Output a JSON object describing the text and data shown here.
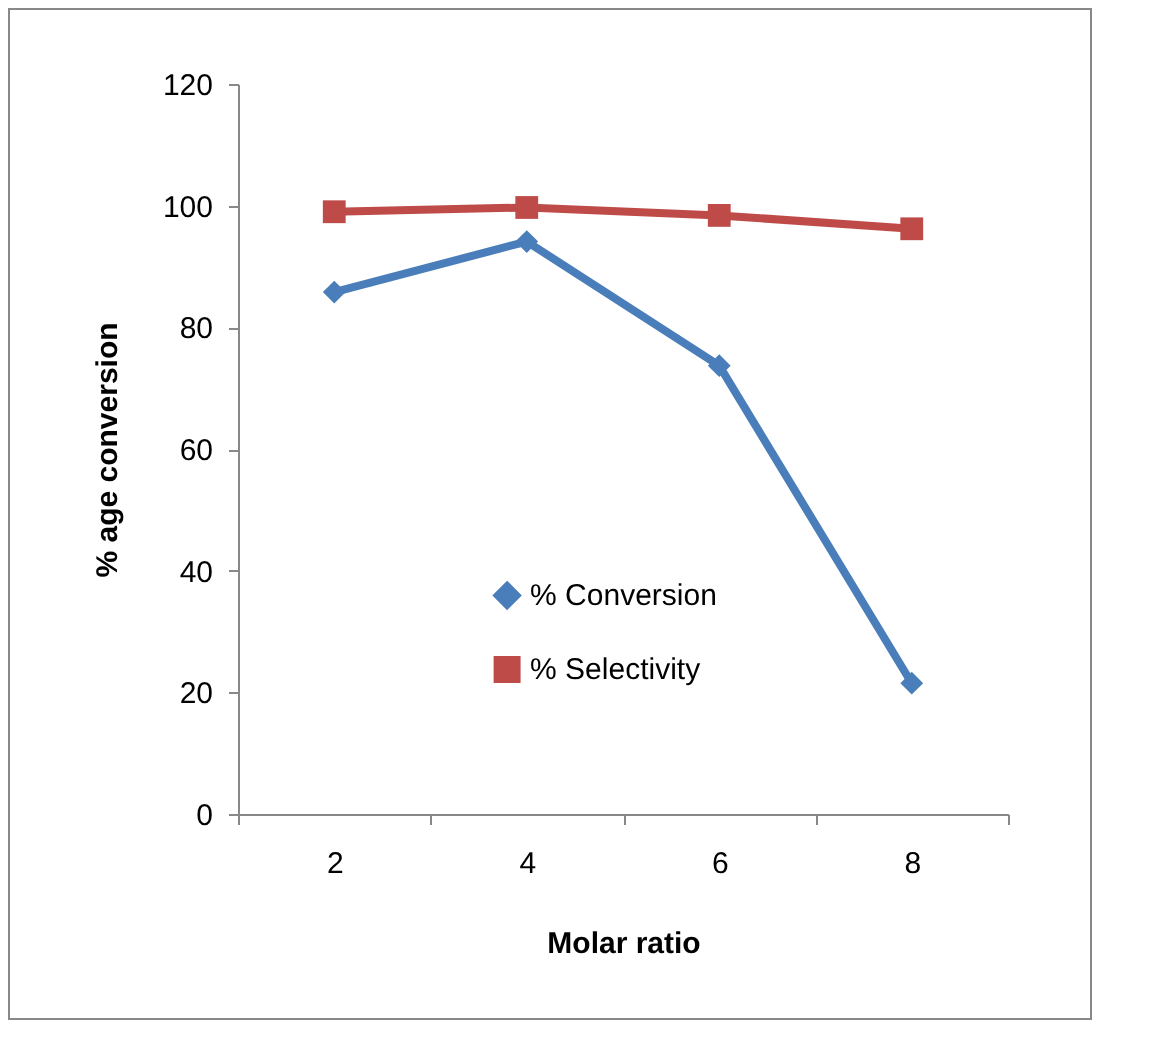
{
  "chart_data": {
    "type": "line",
    "xlabel": "Molar ratio",
    "ylabel": "% age conversion",
    "categories": [
      "2",
      "4",
      "6",
      "8"
    ],
    "series": [
      {
        "name": "% Conversion",
        "color": "#4a7ebb",
        "marker": "diamond",
        "values": [
          85.8,
          94.1,
          73.7,
          21.5
        ]
      },
      {
        "name": "% Selectivity",
        "color": "#be4b48",
        "marker": "square",
        "values": [
          99,
          99.7,
          98.4,
          96.2
        ]
      }
    ],
    "ylim": [
      0,
      120
    ],
    "yticks": [
      0,
      20,
      40,
      60,
      80,
      100,
      120
    ],
    "grid": false,
    "legend": "bottom"
  }
}
